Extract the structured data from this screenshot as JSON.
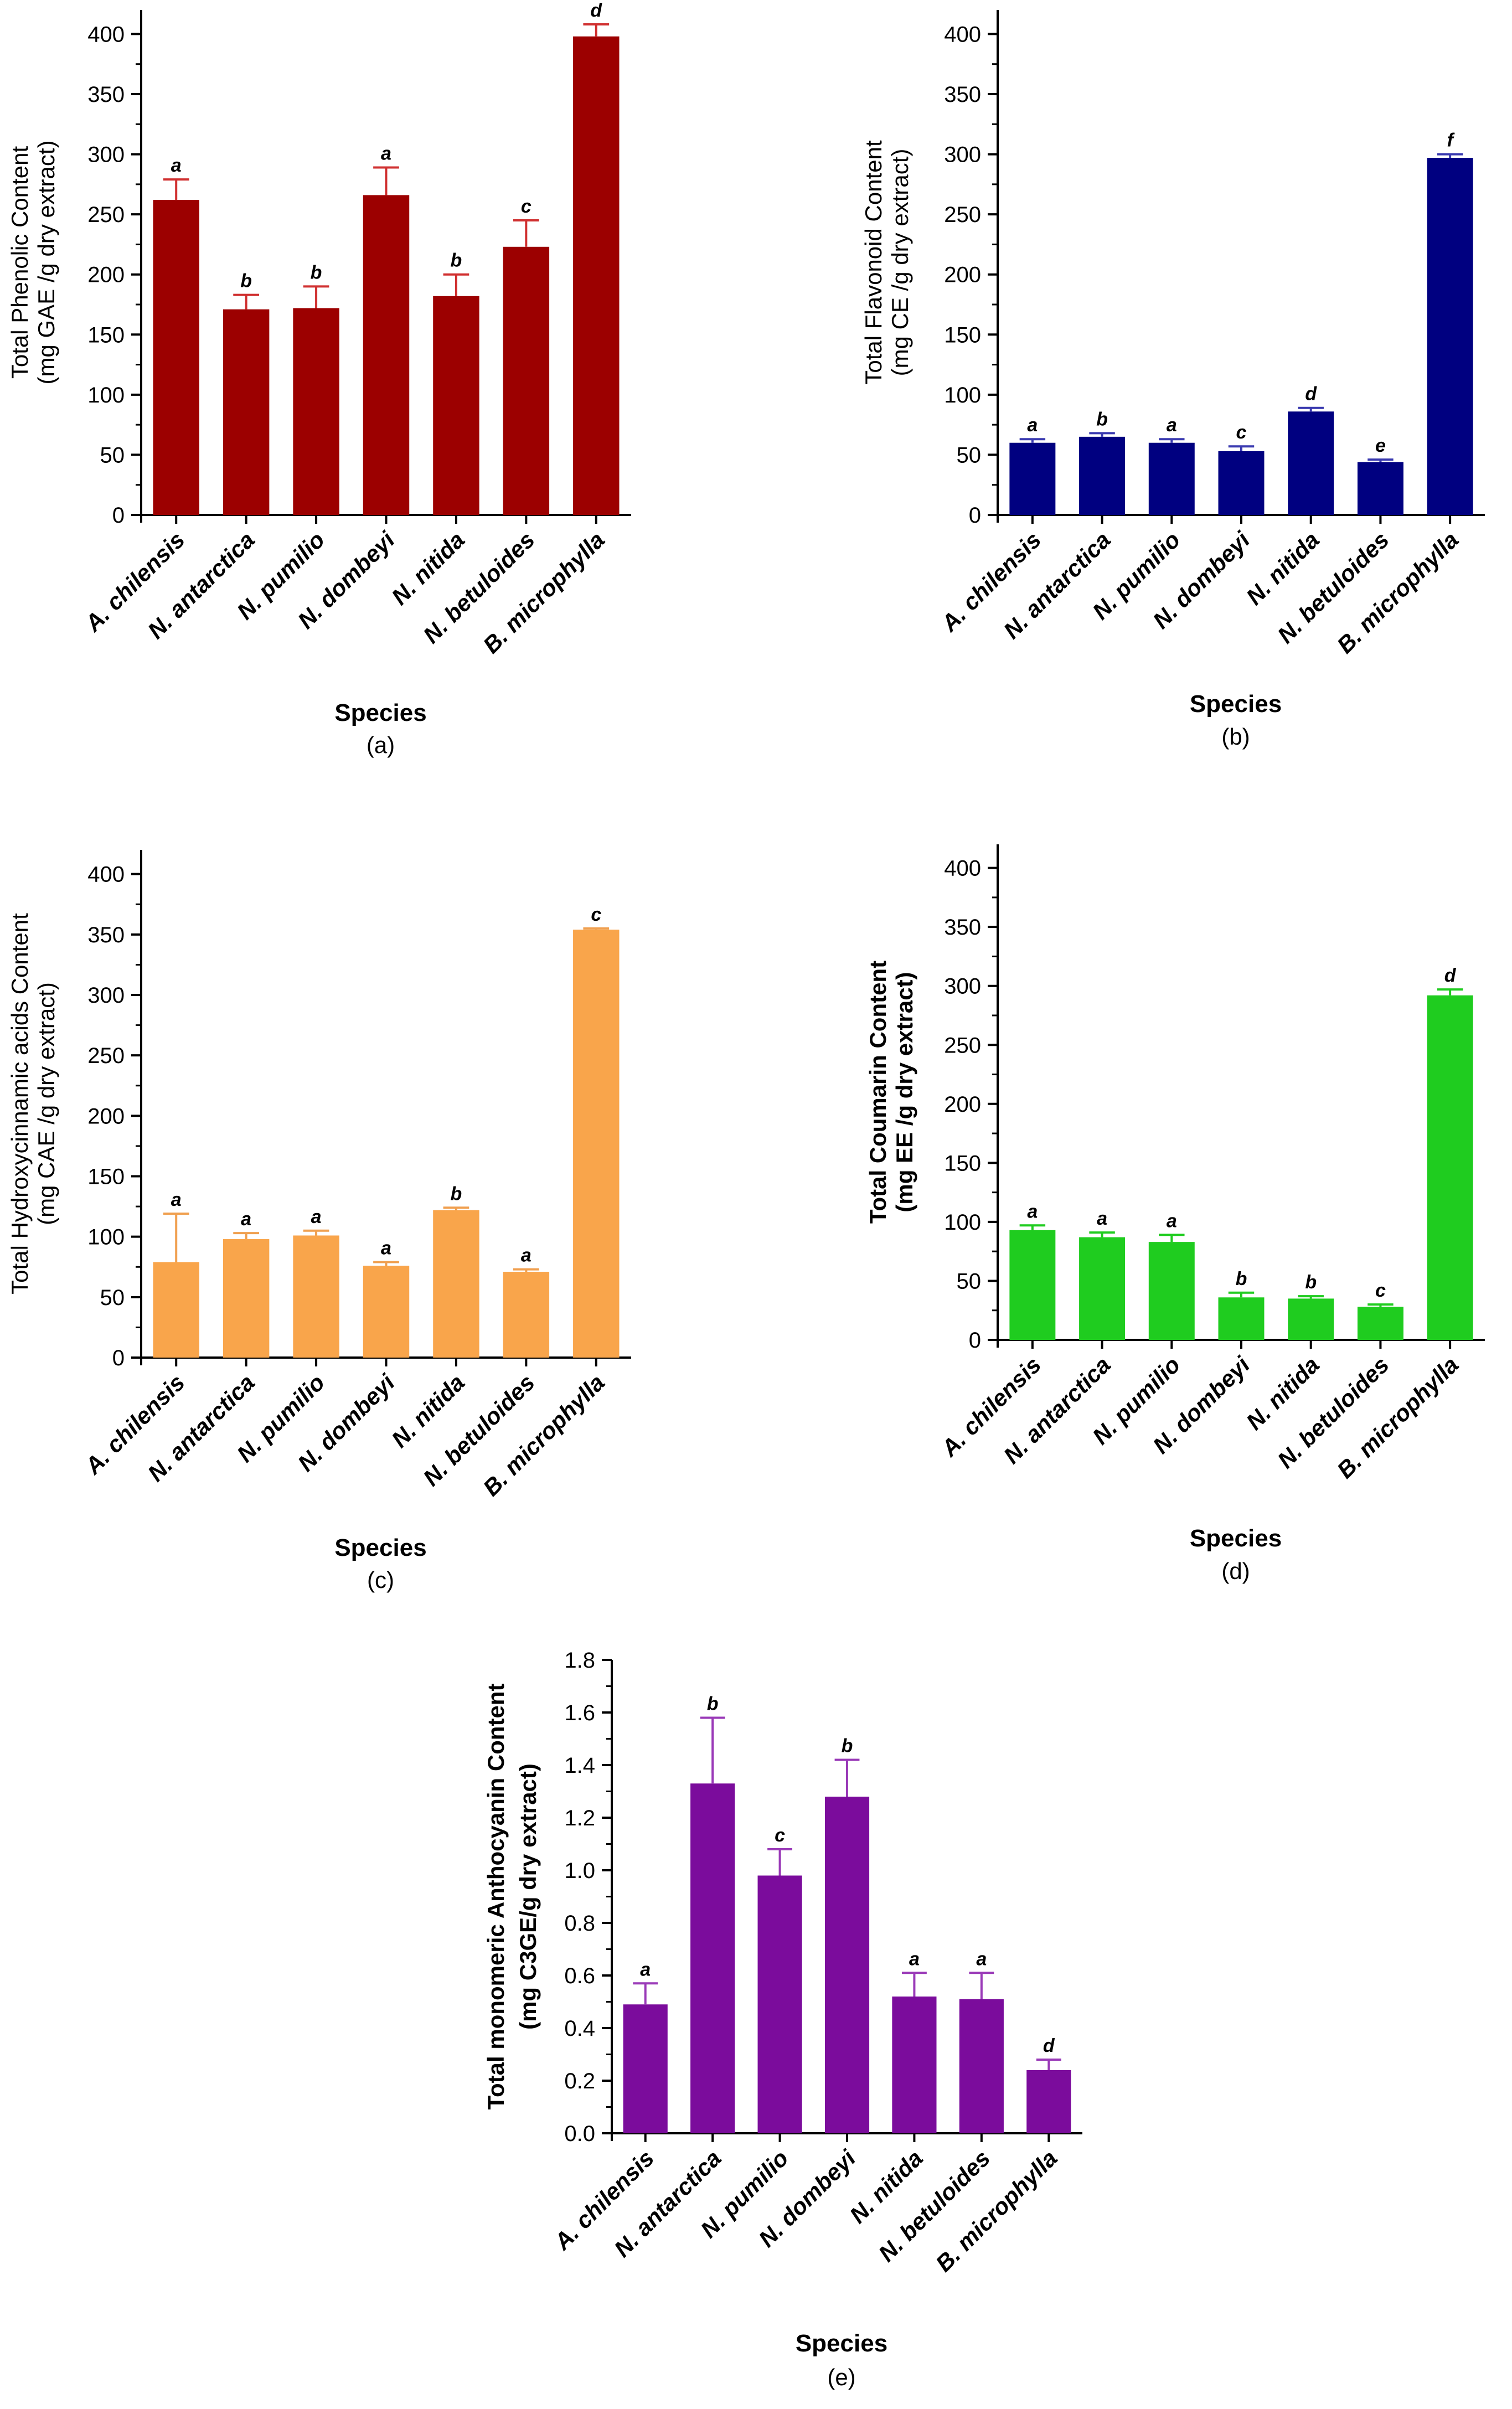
{
  "chart_data": [
    {
      "type": "bar",
      "panel_label": "(a)",
      "categories": [
        "A. chilensis",
        "N. antarctica",
        "N. pumilio",
        "N. dombeyi",
        "N. nitida",
        "N. betuloides",
        "B. microphylla"
      ],
      "values": [
        262,
        171,
        172,
        266,
        182,
        223,
        398
      ],
      "errors": [
        17,
        12,
        18,
        23,
        18,
        22,
        10
      ],
      "significance": [
        "a",
        "b",
        "b",
        "a",
        "b",
        "c",
        "d"
      ],
      "xlabel": "Species",
      "ylabel": "Total Phenolic Content",
      "ylabel2": "(mg GAE /g dry extract)",
      "ylim": [
        0,
        420
      ],
      "yticks": [
        0,
        50,
        100,
        150,
        200,
        250,
        300,
        350,
        400
      ],
      "color": "#9c0000",
      "errcolor": "#d03030",
      "ylabel_bold": false
    },
    {
      "type": "bar",
      "panel_label": "(b)",
      "categories": [
        "A. chilensis",
        "N. antarctica",
        "N. pumilio",
        "N. dombeyi",
        "N. nitida",
        "N. betuloides",
        "B. microphylla"
      ],
      "values": [
        60,
        65,
        60,
        53,
        86,
        44,
        297
      ],
      "errors": [
        3,
        3,
        3,
        4,
        3,
        2,
        3
      ],
      "significance": [
        "a",
        "b",
        "a",
        "c",
        "d",
        "e",
        "f"
      ],
      "xlabel": "Species",
      "ylabel": "Total Flavonoid Content",
      "ylabel2": "(mg CE /g dry extract)",
      "ylim": [
        0,
        420
      ],
      "yticks": [
        0,
        50,
        100,
        150,
        200,
        250,
        300,
        350,
        400
      ],
      "color": "#000080",
      "errcolor": "#3a3ab0",
      "ylabel_bold": false
    },
    {
      "type": "bar",
      "panel_label": "(c)",
      "categories": [
        "A. chilensis",
        "N. antarctica",
        "N. pumilio",
        "N. dombeyi",
        "N. nitida",
        "N. betuloides",
        "B. microphylla"
      ],
      "values": [
        79,
        98,
        101,
        76,
        122,
        71,
        354
      ],
      "errors": [
        40,
        5,
        4,
        3,
        2,
        2,
        1
      ],
      "significance": [
        "a",
        "a",
        "a",
        "a",
        "b",
        "a",
        "c"
      ],
      "xlabel": "Species",
      "ylabel": "Total Hydroxycinnamic acids Content",
      "ylabel2": "(mg CAE /g dry extract)",
      "ylim": [
        0,
        420
      ],
      "yticks": [
        0,
        50,
        100,
        150,
        200,
        250,
        300,
        350,
        400
      ],
      "color": "#f9a54b",
      "errcolor": "#f0a050",
      "ylabel_bold": false
    },
    {
      "type": "bar",
      "panel_label": "(d)",
      "categories": [
        "A. chilensis",
        "N. antarctica",
        "N. pumilio",
        "N. dombeyi",
        "N. nitida",
        "N. betuloides",
        "B. microphylla"
      ],
      "values": [
        93,
        87,
        83,
        36,
        35,
        28,
        292
      ],
      "errors": [
        4,
        4,
        6,
        4,
        2,
        2,
        5
      ],
      "significance": [
        "a",
        "a",
        "a",
        "b",
        "b",
        "c",
        "d"
      ],
      "xlabel": "Species",
      "ylabel": "Total Coumarin Content",
      "ylabel2": "(mg EE /g dry extract)",
      "ylim": [
        0,
        420
      ],
      "yticks": [
        0,
        50,
        100,
        150,
        200,
        250,
        300,
        350,
        400
      ],
      "color": "#1fcc1f",
      "errcolor": "#1fcc1f",
      "ylabel_bold": true
    },
    {
      "type": "bar",
      "panel_label": "(e)",
      "categories": [
        "A. chilensis",
        "N. antarctica",
        "N. pumilio",
        "N. dombeyi",
        "N. nitida",
        "N. betuloides",
        "B. microphylla"
      ],
      "values": [
        0.49,
        1.33,
        0.98,
        1.28,
        0.52,
        0.51,
        0.24
      ],
      "errors": [
        0.08,
        0.25,
        0.1,
        0.14,
        0.09,
        0.1,
        0.04
      ],
      "significance": [
        "a",
        "b",
        "c",
        "b",
        "a",
        "a",
        "d"
      ],
      "xlabel": "Species",
      "ylabel": "Total monomeric Anthocyanin Content",
      "ylabel2": "(mg C3GE/g dry extract)",
      "ylim": [
        0,
        1.8
      ],
      "yticks": [
        "0.0",
        "0.2",
        "0.4",
        "0.6",
        "0.8",
        "1.0",
        "1.2",
        "1.4",
        "1.6",
        "1.8"
      ],
      "color": "#7b0c9c",
      "errcolor": "#9a3ab8",
      "ylabel_bold": true
    }
  ]
}
